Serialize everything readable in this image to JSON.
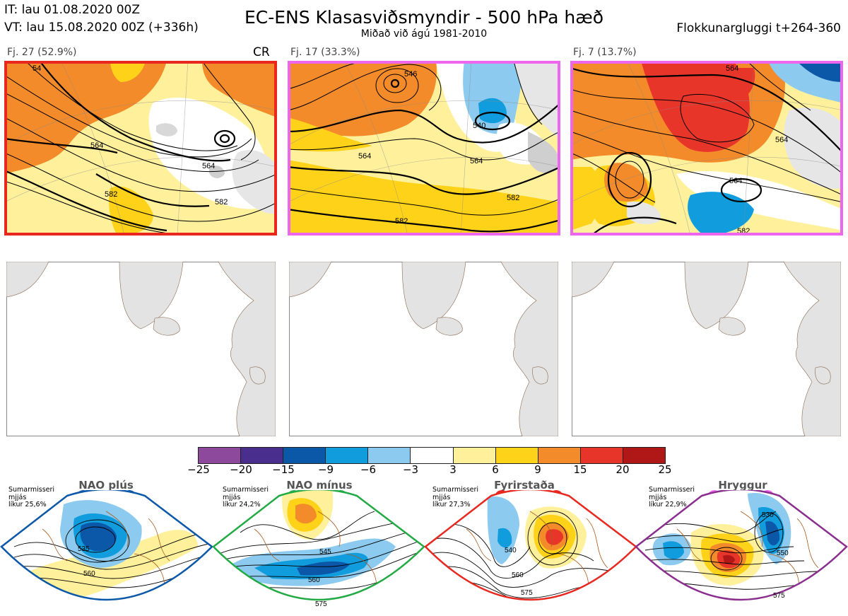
{
  "header": {
    "it": "IT: lau 01.08.2020 00Z",
    "vt": "VT: lau 15.08.2020 00Z  (+336h)",
    "title": "EC-ENS Klasasviðsmyndir - 500 hPa hæð",
    "subtitle": "Miðað við ágú 1981-2010",
    "window": "Flokkunargluggi t+264-360"
  },
  "panels": [
    {
      "label": "Fj. 27 (52.9%)",
      "tag": "CR",
      "frame_color": "#e8281f",
      "contours": [
        "54",
        "564",
        "564",
        "582",
        "582"
      ]
    },
    {
      "label": "Fj. 17 (33.3%)",
      "tag": "",
      "frame_color": "#ee66ee",
      "contours": [
        "546",
        "540",
        "564",
        "564",
        "582",
        "582"
      ]
    },
    {
      "label": "Fj. 7 (13.7%)",
      "tag": "",
      "frame_color": "#ee66ee",
      "contours": [
        "564",
        "564",
        "564",
        "582"
      ]
    }
  ],
  "colorbar": {
    "colors": [
      "#8d4a9c",
      "#4a2e8e",
      "#0b57a8",
      "#119ddd",
      "#8ccbef",
      "#ffffff",
      "#fff19c",
      "#ffd21a",
      "#f48b2a",
      "#e8352a",
      "#b01717"
    ],
    "ticks": [
      "−25",
      "−20",
      "−15",
      "−9",
      "−6",
      "−3",
      "3",
      "6",
      "9",
      "15",
      "20",
      "25"
    ]
  },
  "regimes": [
    {
      "name": "NAO plús",
      "season_lines": [
        "Sumarmisseri",
        "mjjás",
        "líkur 25,6%"
      ],
      "color": "#0b57a8",
      "dot_color": "#0b57a8",
      "contours": [
        "535",
        "560"
      ]
    },
    {
      "name": "NAO mínus",
      "season_lines": [
        "Sumarmisseri",
        "mjjás",
        "líkur 24,2%"
      ],
      "color": "#22aa44",
      "dot_color": "#22aa44",
      "contours": [
        "545",
        "560",
        "575"
      ]
    },
    {
      "name": "Fyrirstaða",
      "season_lines": [
        "Sumarmisseri",
        "mjjás",
        "líkur 27,3%"
      ],
      "color": "#e8281f",
      "dot_color": "#e8281f",
      "contours": [
        "540",
        "560",
        "575"
      ]
    },
    {
      "name": "Hryggur",
      "season_lines": [
        "Sumarmisseri",
        "mjjás",
        "líkur 22,9%"
      ],
      "color": "#8a2f8e",
      "dot_color": "#ee66ee",
      "contours": [
        "530",
        "550",
        "575"
      ]
    }
  ]
}
